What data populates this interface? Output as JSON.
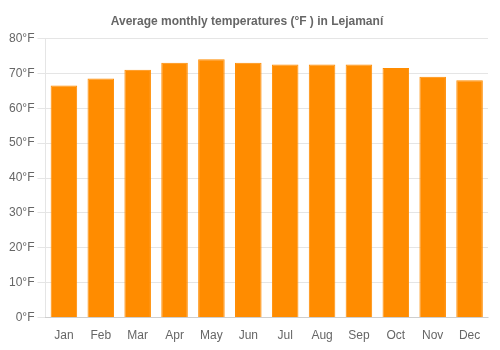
{
  "chart_data": {
    "type": "bar",
    "title": "Average monthly temperatures (°F ) in Lejamaní",
    "categories": [
      "Jan",
      "Feb",
      "Mar",
      "Apr",
      "May",
      "Jun",
      "Jul",
      "Aug",
      "Sep",
      "Oct",
      "Nov",
      "Dec"
    ],
    "values": [
      66.5,
      68.5,
      71.0,
      73.0,
      74.0,
      73.0,
      72.5,
      72.5,
      72.5,
      71.5,
      69.0,
      68.0
    ],
    "color": "#FF8C00",
    "ylim": [
      0,
      80
    ],
    "yticks": [
      {
        "value": 0,
        "label": "0°F"
      },
      {
        "value": 10,
        "label": "10°F"
      },
      {
        "value": 20,
        "label": "20°F"
      },
      {
        "value": 30,
        "label": "30°F"
      },
      {
        "value": 40,
        "label": "40°F"
      },
      {
        "value": 50,
        "label": "50°F"
      },
      {
        "value": 60,
        "label": "60°F"
      },
      {
        "value": 70,
        "label": "70°F"
      },
      {
        "value": 80,
        "label": "80°F"
      }
    ],
    "grid": true
  }
}
